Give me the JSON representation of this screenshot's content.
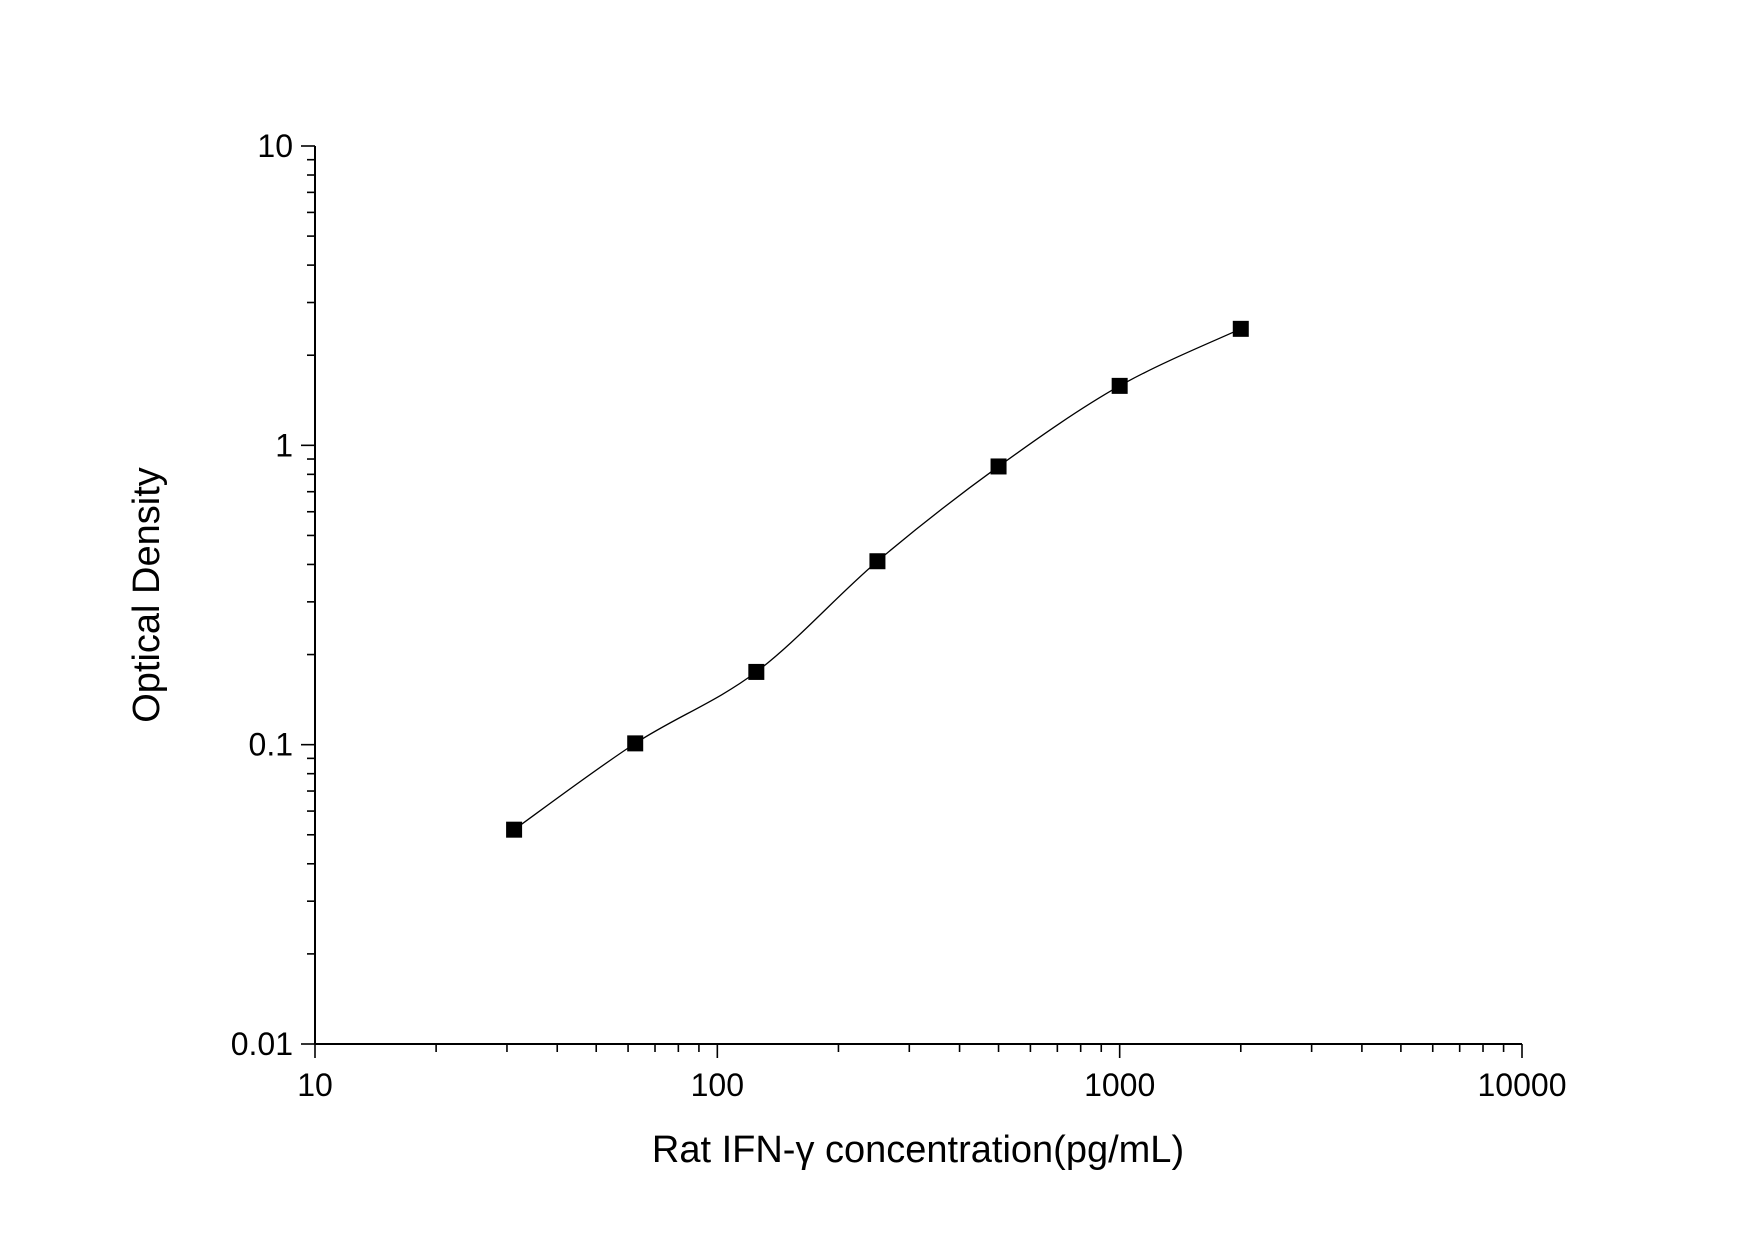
{
  "chart_data": {
    "type": "scatter",
    "title": "",
    "xlabel": "Rat IFN-γ   concentration(pg/mL)",
    "ylabel": "Optical Density",
    "xscale": "log",
    "yscale": "log",
    "xlim": [
      10,
      10000
    ],
    "ylim": [
      0.01,
      10
    ],
    "x_tick_labels": [
      "10",
      "100",
      "1000",
      "10000"
    ],
    "y_tick_labels": [
      "0.01",
      "0.1",
      "1",
      "10"
    ],
    "x_tick_values": [
      10,
      100,
      1000,
      10000
    ],
    "y_tick_values": [
      0.01,
      0.1,
      1,
      10
    ],
    "grid": false,
    "series": [
      {
        "marker": "square",
        "color": "#000000",
        "x": [
          31.25,
          62.5,
          125,
          250,
          500,
          1000,
          2000
        ],
        "y": [
          0.052,
          0.101,
          0.175,
          0.41,
          0.85,
          1.58,
          2.45
        ]
      }
    ],
    "fit_curve": true,
    "fit_color": "#000000"
  }
}
